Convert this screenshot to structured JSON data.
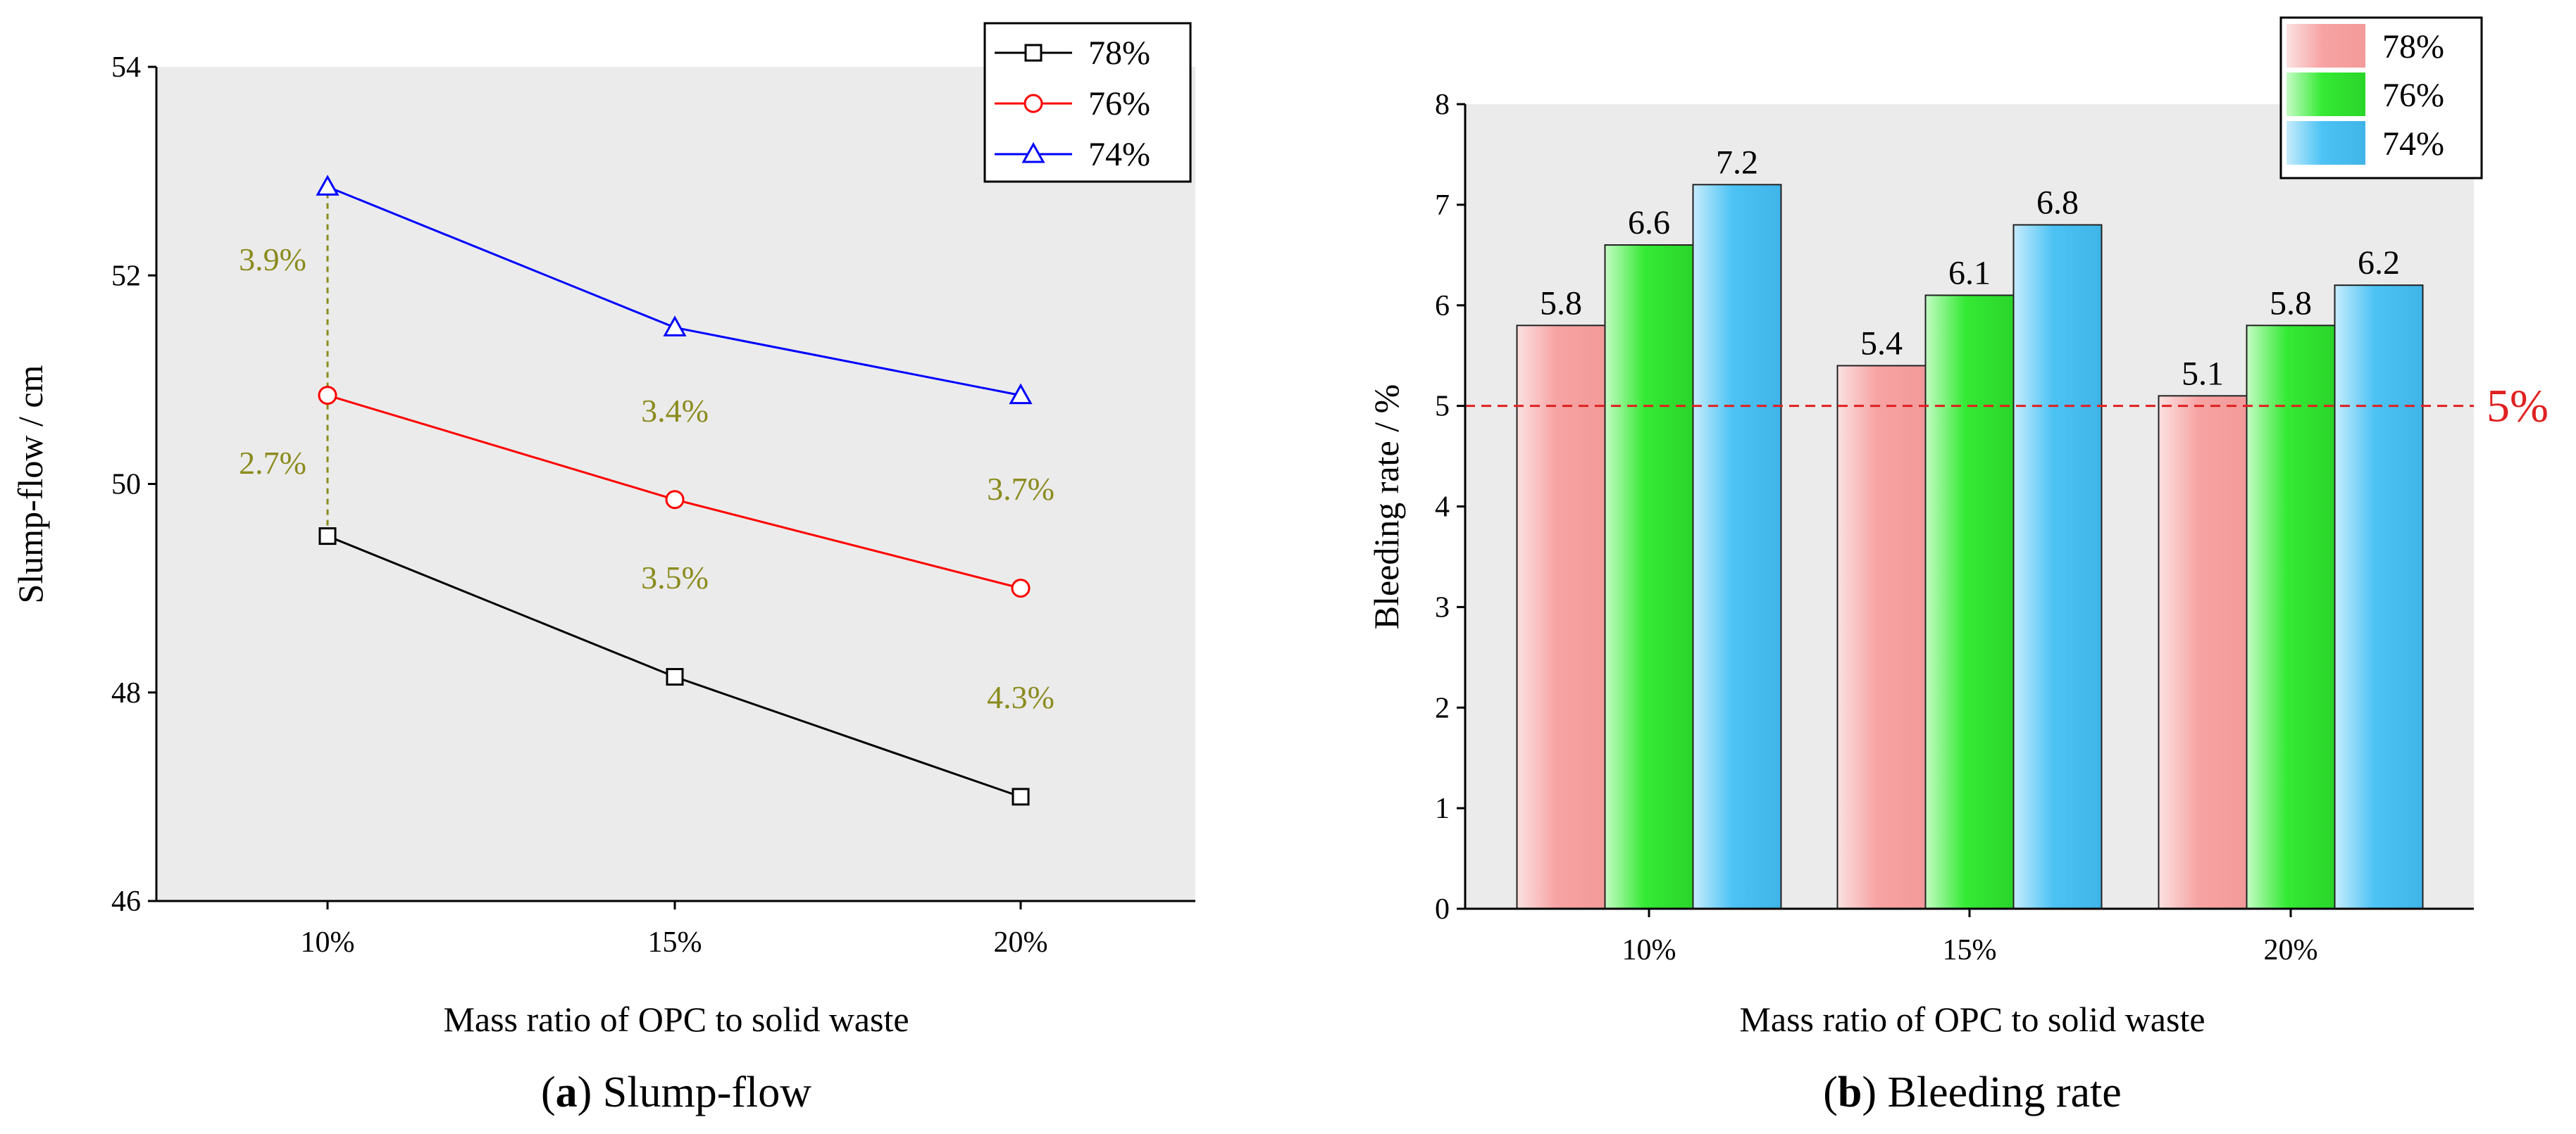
{
  "chart_data": [
    {
      "type": "line",
      "caption_letter": "a",
      "caption_title": "Slump-flow",
      "xlabel": "Mass ratio of OPC to solid waste",
      "ylabel": "Slump-flow / cm",
      "categories": [
        "10%",
        "15%",
        "20%"
      ],
      "ylim": [
        46,
        54
      ],
      "yticks": [
        46,
        48,
        50,
        52,
        54
      ],
      "grid": false,
      "legend_position": "top-right",
      "series": [
        {
          "name": "78%",
          "marker": "square",
          "color": "#000000",
          "values": [
            49.5,
            48.15,
            47.0
          ]
        },
        {
          "name": "76%",
          "marker": "circle",
          "color": "#ff0000",
          "values": [
            50.85,
            49.85,
            49.0
          ]
        },
        {
          "name": "74%",
          "marker": "triangle",
          "color": "#0000ff",
          "values": [
            52.85,
            51.5,
            50.85
          ]
        }
      ],
      "annotation_color": "#8b8b1e",
      "annotations": [
        {
          "text": "3.9%",
          "x": 0,
          "y": 52.15,
          "anchor": "right"
        },
        {
          "text": "2.7%",
          "x": 0,
          "y": 50.2,
          "anchor": "right"
        },
        {
          "text": "3.4%",
          "x": 1,
          "y": 50.7,
          "anchor": "middle"
        },
        {
          "text": "3.5%",
          "x": 1,
          "y": 49.1,
          "anchor": "middle"
        },
        {
          "text": "3.7%",
          "x": 2,
          "y": 49.95,
          "anchor": "middle"
        },
        {
          "text": "4.3%",
          "x": 2,
          "y": 47.95,
          "anchor": "middle"
        }
      ],
      "guide": {
        "x": 0,
        "y_from": 49.5,
        "y_to": 52.85
      }
    },
    {
      "type": "bar",
      "caption_letter": "b",
      "caption_title": "Bleeding rate",
      "xlabel": "Mass ratio of OPC to solid waste",
      "ylabel": "Bleeding rate  / %",
      "categories": [
        "10%",
        "15%",
        "20%"
      ],
      "ylim": [
        0,
        8
      ],
      "yticks": [
        0,
        1,
        2,
        3,
        4,
        5,
        6,
        7,
        8
      ],
      "grid": false,
      "legend_position": "top-right",
      "series": [
        {
          "name": "78%",
          "color": "#f7a3a3",
          "values": [
            5.8,
            5.4,
            5.1
          ],
          "labels": [
            "5.8",
            "5.4",
            "5.1"
          ]
        },
        {
          "name": "76%",
          "color": "#35ea35",
          "values": [
            6.6,
            6.1,
            5.8
          ],
          "labels": [
            "6.6",
            "6.1",
            "5.8"
          ]
        },
        {
          "name": "74%",
          "color": "#4cc3f4",
          "values": [
            7.2,
            6.8,
            6.2
          ],
          "labels": [
            "7.2",
            "6.8",
            "6.2"
          ]
        }
      ],
      "reference_line": {
        "value": 5,
        "label": "5%",
        "color": "#e02020"
      }
    }
  ]
}
